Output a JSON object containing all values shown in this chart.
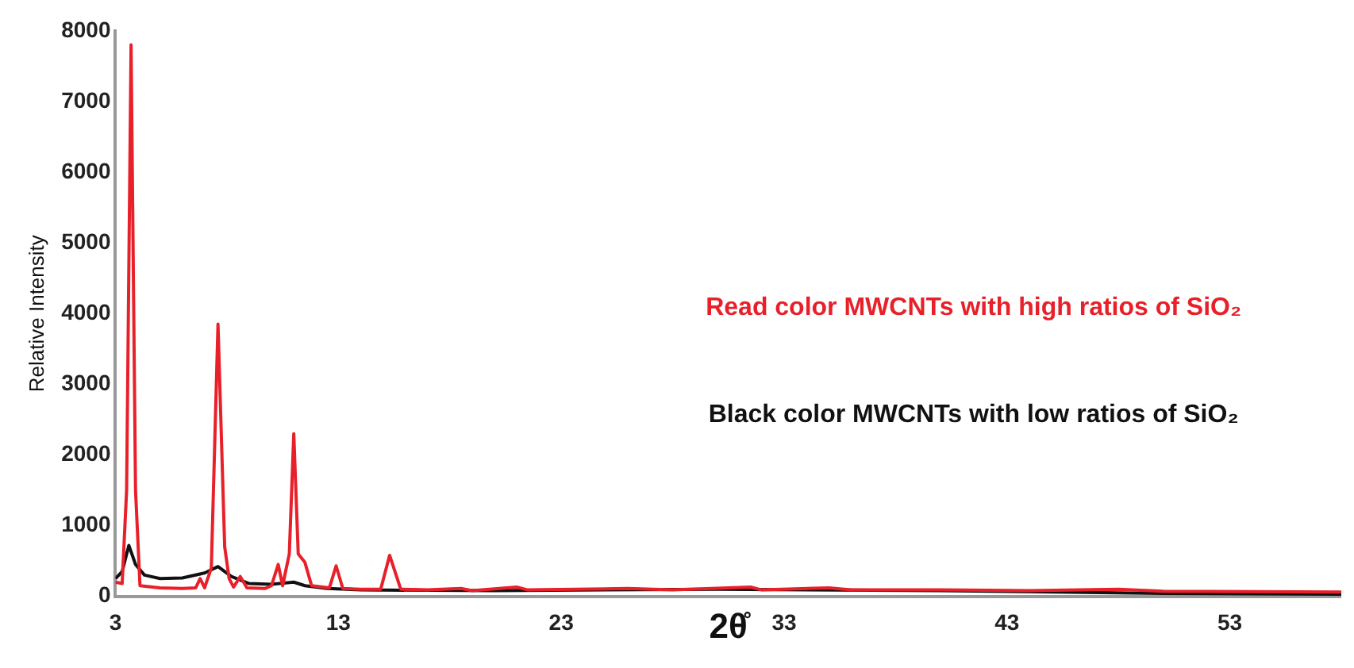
{
  "chart_data": {
    "type": "line",
    "xlabel": "2θ̊",
    "ylabel": "Relative Intensity",
    "xlim": [
      3,
      58
    ],
    "xticks": [
      3,
      13,
      23,
      33,
      43,
      53
    ],
    "ylim": [
      0,
      8000
    ],
    "yticks": [
      0,
      1000,
      2000,
      3000,
      4000,
      5000,
      6000,
      7000,
      8000
    ],
    "grid": false,
    "legend": false,
    "marker": "none",
    "line_style": "solid",
    "series": [
      {
        "name": "Read color MWCNTs with high ratios of SiO₂",
        "color": "#e8202a",
        "x": [
          3,
          3.3,
          3.5,
          3.7,
          3.9,
          4.1,
          5,
          6,
          6.6,
          6.8,
          7.0,
          7.3,
          7.6,
          7.9,
          8.1,
          8.3,
          8.6,
          8.9,
          9.7,
          10.0,
          10.3,
          10.5,
          10.8,
          11.0,
          11.2,
          11.5,
          11.8,
          12.6,
          12.9,
          13.2,
          14.0,
          14.9,
          15.3,
          15.8,
          17,
          18.5,
          19,
          21,
          21.5,
          26,
          28,
          31.5,
          32,
          35,
          36,
          40,
          44,
          48,
          50,
          58
        ],
        "values": [
          200,
          180,
          1500,
          7800,
          1500,
          150,
          120,
          110,
          120,
          250,
          120,
          400,
          3850,
          700,
          250,
          130,
          280,
          120,
          110,
          150,
          450,
          150,
          600,
          2300,
          600,
          480,
          150,
          120,
          430,
          110,
          100,
          100,
          580,
          100,
          90,
          110,
          80,
          130,
          90,
          110,
          90,
          130,
          90,
          120,
          90,
          90,
          80,
          100,
          70,
          60
        ]
      },
      {
        "name": "Black color MWCNTs with low ratios of SiO₂",
        "color": "#111111",
        "x": [
          3,
          3.3,
          3.6,
          3.9,
          4.3,
          5,
          6,
          7,
          7.6,
          8.2,
          9,
          10,
          11,
          11.5,
          12.5,
          14,
          20,
          30,
          40,
          50,
          58
        ],
        "values": [
          250,
          350,
          720,
          450,
          300,
          250,
          260,
          330,
          420,
          280,
          180,
          170,
          200,
          150,
          110,
          90,
          80,
          100,
          80,
          40,
          30
        ]
      }
    ]
  }
}
